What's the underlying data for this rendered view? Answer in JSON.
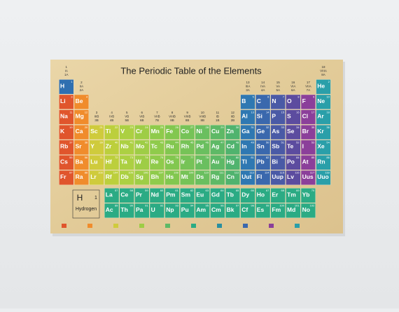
{
  "title": "The Periodic Table of the Elements",
  "groups": [
    {
      "num": "1",
      "old": "IA",
      "cas": "1A"
    },
    {
      "num": "2",
      "old": "IIA",
      "cas": "2A"
    },
    {
      "num": "3",
      "old": "IIIB",
      "cas": "3B"
    },
    {
      "num": "4",
      "old": "IVB",
      "cas": "4B"
    },
    {
      "num": "5",
      "old": "VB",
      "cas": "5B"
    },
    {
      "num": "6",
      "old": "VIB",
      "cas": "6B"
    },
    {
      "num": "7",
      "old": "VIIB",
      "cas": "7B"
    },
    {
      "num": "8",
      "old": "VIIIB",
      "cas": "8B"
    },
    {
      "num": "9",
      "old": "VIIIB",
      "cas": "8B"
    },
    {
      "num": "10",
      "old": "VIIIB",
      "cas": "8B"
    },
    {
      "num": "11",
      "old": "IB",
      "cas": "1B"
    },
    {
      "num": "12",
      "old": "IIB",
      "cas": "2B"
    },
    {
      "num": "13",
      "old": "IIIA",
      "cas": "3A"
    },
    {
      "num": "14",
      "old": "IVA",
      "cas": "4A"
    },
    {
      "num": "15",
      "old": "VA",
      "cas": "5A"
    },
    {
      "num": "16",
      "old": "VIA",
      "cas": "6A"
    },
    {
      "num": "17",
      "old": "VIIA",
      "cas": "7A"
    },
    {
      "num": "18",
      "old": "VIIIA",
      "cas": "8A"
    }
  ],
  "column_colors": [
    "#e0552c",
    "#f08c2c",
    "#cfcb3c",
    "#bccf3c",
    "#acd042",
    "#9ecd46",
    "#8fcb4b",
    "#82c74f",
    "#76c357",
    "#6abf5f",
    "#5eb966",
    "#50b36e",
    "#2f78b2",
    "#3a68ad",
    "#4a5aa6",
    "#5c4c9f",
    "#8b3f9a",
    "#2a9fa9"
  ],
  "hydrogen_color": "#2f6fb0",
  "f_block_color": "#2bab84",
  "periods": [
    {
      "cells": [
        {
          "n": "1",
          "s": "H"
        },
        null,
        null,
        null,
        null,
        null,
        null,
        null,
        null,
        null,
        null,
        null,
        null,
        null,
        null,
        null,
        null,
        {
          "n": "2",
          "s": "He"
        }
      ]
    },
    {
      "cells": [
        {
          "n": "3",
          "s": "Li"
        },
        {
          "n": "4",
          "s": "Be"
        },
        null,
        null,
        null,
        null,
        null,
        null,
        null,
        null,
        null,
        null,
        {
          "n": "5",
          "s": "B"
        },
        {
          "n": "6",
          "s": "C"
        },
        {
          "n": "7",
          "s": "N"
        },
        {
          "n": "8",
          "s": "O"
        },
        {
          "n": "9",
          "s": "F"
        },
        {
          "n": "10",
          "s": "Ne"
        }
      ]
    },
    {
      "cells": [
        {
          "n": "11",
          "s": "Na"
        },
        {
          "n": "12",
          "s": "Mg"
        },
        null,
        null,
        null,
        null,
        null,
        null,
        null,
        null,
        null,
        null,
        {
          "n": "13",
          "s": "Al"
        },
        {
          "n": "14",
          "s": "Si"
        },
        {
          "n": "15",
          "s": "P"
        },
        {
          "n": "16",
          "s": "S"
        },
        {
          "n": "17",
          "s": "Cl"
        },
        {
          "n": "18",
          "s": "Ar"
        }
      ]
    },
    {
      "cells": [
        {
          "n": "19",
          "s": "K"
        },
        {
          "n": "20",
          "s": "Ca"
        },
        {
          "n": "21",
          "s": "Sc"
        },
        {
          "n": "22",
          "s": "Ti"
        },
        {
          "n": "23",
          "s": "V"
        },
        {
          "n": "24",
          "s": "Cr"
        },
        {
          "n": "25",
          "s": "Mn"
        },
        {
          "n": "26",
          "s": "Fe"
        },
        {
          "n": "27",
          "s": "Co"
        },
        {
          "n": "28",
          "s": "Ni"
        },
        {
          "n": "29",
          "s": "Cu"
        },
        {
          "n": "30",
          "s": "Zn"
        },
        {
          "n": "31",
          "s": "Ga"
        },
        {
          "n": "32",
          "s": "Ge"
        },
        {
          "n": "33",
          "s": "As"
        },
        {
          "n": "34",
          "s": "Se"
        },
        {
          "n": "35",
          "s": "Br"
        },
        {
          "n": "36",
          "s": "Kr"
        }
      ]
    },
    {
      "cells": [
        {
          "n": "37",
          "s": "Rb"
        },
        {
          "n": "38",
          "s": "Sr"
        },
        {
          "n": "39",
          "s": "Y"
        },
        {
          "n": "40",
          "s": "Zr"
        },
        {
          "n": "41",
          "s": "Nb"
        },
        {
          "n": "42",
          "s": "Mo"
        },
        {
          "n": "43",
          "s": "Tc"
        },
        {
          "n": "44",
          "s": "Ru"
        },
        {
          "n": "45",
          "s": "Rh"
        },
        {
          "n": "46",
          "s": "Pd"
        },
        {
          "n": "47",
          "s": "Ag"
        },
        {
          "n": "48",
          "s": "Cd"
        },
        {
          "n": "49",
          "s": "In"
        },
        {
          "n": "50",
          "s": "Sn"
        },
        {
          "n": "51",
          "s": "Sb"
        },
        {
          "n": "52",
          "s": "Te"
        },
        {
          "n": "53",
          "s": "I"
        },
        {
          "n": "54",
          "s": "Xe"
        }
      ]
    },
    {
      "cells": [
        {
          "n": "55",
          "s": "Cs"
        },
        {
          "n": "56",
          "s": "Ba"
        },
        {
          "n": "71",
          "s": "Lu"
        },
        {
          "n": "72",
          "s": "Hf"
        },
        {
          "n": "73",
          "s": "Ta"
        },
        {
          "n": "74",
          "s": "W"
        },
        {
          "n": "75",
          "s": "Re"
        },
        {
          "n": "76",
          "s": "Os"
        },
        {
          "n": "77",
          "s": "Ir"
        },
        {
          "n": "78",
          "s": "Pt"
        },
        {
          "n": "79",
          "s": "Au"
        },
        {
          "n": "80",
          "s": "Hg"
        },
        {
          "n": "81",
          "s": "Tl"
        },
        {
          "n": "82",
          "s": "Pb"
        },
        {
          "n": "83",
          "s": "Bi"
        },
        {
          "n": "84",
          "s": "Po"
        },
        {
          "n": "85",
          "s": "At"
        },
        {
          "n": "86",
          "s": "Rn"
        }
      ]
    },
    {
      "cells": [
        {
          "n": "87",
          "s": "Fr"
        },
        {
          "n": "88",
          "s": "Ra"
        },
        {
          "n": "103",
          "s": "Lr"
        },
        {
          "n": "104",
          "s": "Rf"
        },
        {
          "n": "105",
          "s": "Db"
        },
        {
          "n": "106",
          "s": "Sg"
        },
        {
          "n": "107",
          "s": "Bh"
        },
        {
          "n": "108",
          "s": "Hs"
        },
        {
          "n": "109",
          "s": "Mt"
        },
        {
          "n": "110",
          "s": "Ds"
        },
        {
          "n": "111",
          "s": "Rg"
        },
        {
          "n": "112",
          "s": "Cn"
        },
        {
          "n": "113",
          "s": "Uut"
        },
        {
          "n": "114",
          "s": "Fl"
        },
        {
          "n": "115",
          "s": "Uup"
        },
        {
          "n": "116",
          "s": "Lv"
        },
        {
          "n": "117",
          "s": "Uus"
        },
        {
          "n": "118",
          "s": "Uuo"
        }
      ]
    }
  ],
  "f_block": [
    {
      "cells": [
        {
          "n": "57",
          "s": "La"
        },
        {
          "n": "58",
          "s": "Ce"
        },
        {
          "n": "59",
          "s": "Pr"
        },
        {
          "n": "60",
          "s": "Nd"
        },
        {
          "n": "61",
          "s": "Pm"
        },
        {
          "n": "62",
          "s": "Sm"
        },
        {
          "n": "63",
          "s": "Eu"
        },
        {
          "n": "64",
          "s": "Gd"
        },
        {
          "n": "65",
          "s": "Tb"
        },
        {
          "n": "66",
          "s": "Dy"
        },
        {
          "n": "67",
          "s": "Ho"
        },
        {
          "n": "68",
          "s": "Er"
        },
        {
          "n": "69",
          "s": "Tm"
        },
        {
          "n": "70",
          "s": "Yb"
        }
      ]
    },
    {
      "cells": [
        {
          "n": "89",
          "s": "Ac"
        },
        {
          "n": "90",
          "s": "Th"
        },
        {
          "n": "91",
          "s": "Pa"
        },
        {
          "n": "92",
          "s": "U"
        },
        {
          "n": "93",
          "s": "Np"
        },
        {
          "n": "94",
          "s": "Pu"
        },
        {
          "n": "95",
          "s": "Am"
        },
        {
          "n": "96",
          "s": "Cm"
        },
        {
          "n": "97",
          "s": "Bk"
        },
        {
          "n": "98",
          "s": "Cf"
        },
        {
          "n": "99",
          "s": "Es"
        },
        {
          "n": "100",
          "s": "Fm"
        },
        {
          "n": "101",
          "s": "Md"
        },
        {
          "n": "102",
          "s": "No"
        }
      ]
    }
  ],
  "key": {
    "symbol": "H",
    "number": "1",
    "name": "Hydrogen"
  },
  "legend_colors": [
    "#e0552c",
    "#f08c2c",
    "#cfcb3c",
    "#9ecd46",
    "#5eb966",
    "#2bab84",
    "#2a8fa0",
    "#3a68ad",
    "#8b3f9a",
    "#2a9fa9"
  ]
}
